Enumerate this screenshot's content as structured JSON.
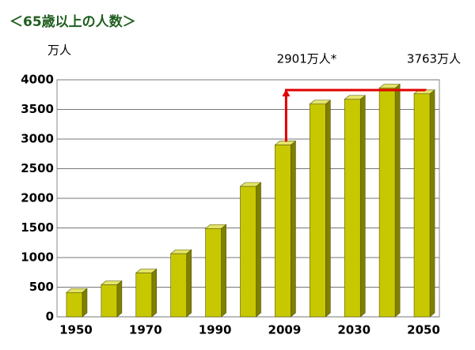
{
  "chart_data": {
    "type": "bar",
    "title": "＜65歳以上の人数＞",
    "y_label": "万人",
    "categories": [
      "1950",
      null,
      "1970",
      null,
      "1990",
      null,
      "2009",
      null,
      "2030",
      null,
      "2050"
    ],
    "values": [
      410,
      540,
      740,
      1065,
      1490,
      2200,
      2901,
      3590,
      3670,
      3860,
      3763
    ],
    "color": "#c8c800",
    "ylim": [
      0,
      4000
    ],
    "yticks": [
      0,
      500,
      1000,
      1500,
      2000,
      2500,
      3000,
      3500,
      4000
    ],
    "grid": true,
    "annotations": [
      "2901万人*",
      "3763万人"
    ]
  }
}
